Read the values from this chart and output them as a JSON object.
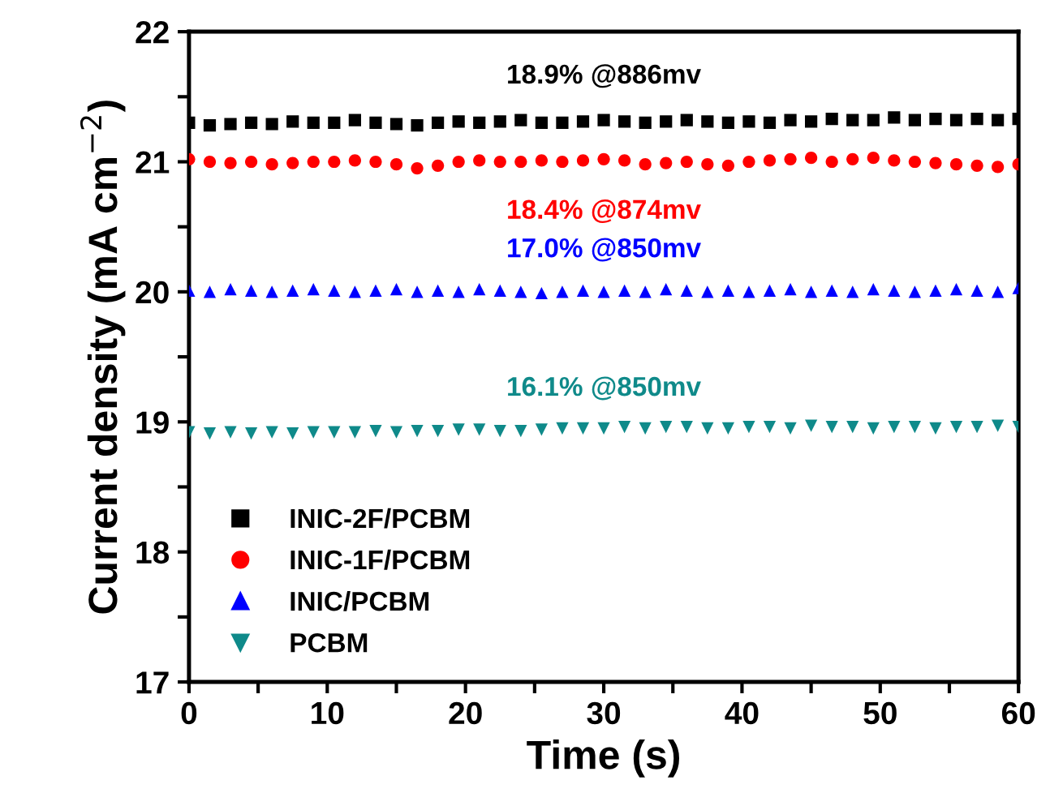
{
  "chart_data": {
    "type": "scatter",
    "xlabel": "Time (s)",
    "ylabel": "Current density (mA cm$^{−2}$)",
    "xlim": [
      0,
      60
    ],
    "ylim": [
      17,
      22
    ],
    "xticks": [
      0,
      {
        "value": 5,
        "label": null
      },
      10,
      {
        "value": 15,
        "label": null
      },
      20,
      {
        "value": 25,
        "label": null
      },
      30,
      {
        "value": 35,
        "label": null
      },
      40,
      {
        "value": 45,
        "label": null
      },
      50,
      {
        "value": 55,
        "label": null
      },
      60
    ],
    "yticks": [
      17,
      {
        "value": 17.5,
        "label": null
      },
      18,
      {
        "value": 18.5,
        "label": null
      },
      19,
      {
        "value": 19.5,
        "label": null
      },
      20,
      {
        "value": 20.5,
        "label": null
      },
      21,
      {
        "value": 21.5,
        "label": null
      },
      22
    ],
    "grid": false,
    "legend": "bottom left",
    "x": [
      0,
      1.5,
      3,
      4.5,
      6,
      7.5,
      9,
      10.5,
      12,
      13.5,
      15,
      16.5,
      18,
      19.5,
      21,
      22.5,
      24,
      25.5,
      27,
      28.5,
      30,
      31.5,
      33,
      34.5,
      36,
      37.5,
      39,
      40.5,
      42,
      43.5,
      45,
      46.5,
      48,
      49.5,
      51,
      52.5,
      54,
      55.5,
      57,
      58.5,
      60
    ],
    "series": [
      {
        "name": "INIC-2F/PCBM",
        "color": "#000000",
        "marker": "square",
        "values": [
          21.3,
          21.28,
          21.29,
          21.3,
          21.29,
          21.31,
          21.3,
          21.3,
          21.32,
          21.3,
          21.29,
          21.28,
          21.3,
          21.31,
          21.3,
          21.31,
          21.32,
          21.3,
          21.3,
          21.31,
          21.32,
          21.31,
          21.3,
          21.31,
          21.32,
          21.31,
          21.3,
          21.31,
          21.3,
          21.32,
          21.31,
          21.33,
          21.32,
          21.32,
          21.34,
          21.32,
          21.33,
          21.32,
          21.33,
          21.32,
          21.33
        ]
      },
      {
        "name": "INIC-1F/PCBM",
        "color": "#ff0000",
        "marker": "circle",
        "values": [
          21.02,
          21.0,
          20.99,
          21.0,
          20.98,
          20.99,
          21.0,
          21.0,
          21.01,
          21.0,
          20.98,
          20.95,
          20.97,
          21.0,
          21.01,
          21.0,
          21.0,
          21.01,
          21.0,
          21.01,
          21.02,
          21.01,
          20.98,
          20.99,
          21.0,
          20.98,
          20.97,
          21.0,
          21.01,
          21.02,
          21.03,
          21.0,
          21.02,
          21.03,
          21.01,
          21.0,
          20.99,
          20.98,
          20.97,
          20.96,
          20.98
        ]
      },
      {
        "name": "INIC/PCBM",
        "color": "#0000ff",
        "marker": "triangle",
        "values": [
          20.01,
          20.0,
          20.02,
          20.01,
          20.0,
          20.01,
          20.02,
          20.01,
          20.0,
          20.01,
          20.02,
          20.0,
          20.01,
          20.0,
          20.02,
          20.01,
          20.0,
          19.99,
          20.0,
          20.01,
          20.0,
          20.01,
          20.0,
          20.02,
          20.01,
          20.0,
          20.01,
          20.0,
          20.01,
          20.02,
          20.0,
          20.01,
          20.0,
          20.02,
          20.01,
          20.0,
          20.01,
          20.02,
          20.01,
          20.0,
          20.03
        ]
      },
      {
        "name": "PCBM",
        "color": "#0f8a8a",
        "marker": "triangle_down",
        "values": [
          18.92,
          18.91,
          18.92,
          18.91,
          18.92,
          18.91,
          18.92,
          18.92,
          18.92,
          18.93,
          18.92,
          18.93,
          18.93,
          18.94,
          18.94,
          18.93,
          18.93,
          18.94,
          18.95,
          18.95,
          18.95,
          18.96,
          18.95,
          18.96,
          18.96,
          18.95,
          18.95,
          18.96,
          18.96,
          18.95,
          18.97,
          18.96,
          18.96,
          18.95,
          18.96,
          18.96,
          18.95,
          18.96,
          18.96,
          18.97,
          18.96
        ]
      }
    ],
    "annotations": [
      "18.9% @886mv",
      "18.4% @874mv",
      "17.0% @850mv",
      "16.1% @850mv"
    ]
  }
}
